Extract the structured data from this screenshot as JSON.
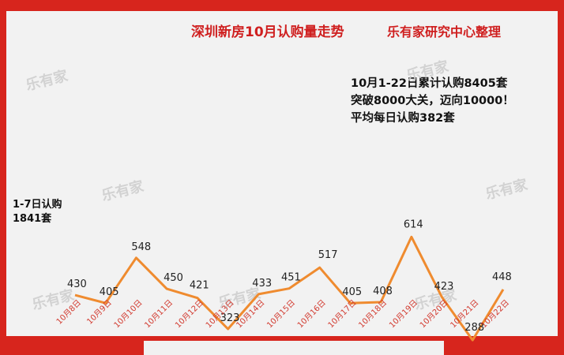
{
  "title": "深圳新房10月认购量走势",
  "credit": "乐有家研究中心整理",
  "annotation_lines": [
    "10月1-22日累计认购8405套",
    "突破8000大关，迈向10000！",
    "平均每日认购382套"
  ],
  "side_note": [
    "1-7日认购",
    "1841套"
  ],
  "watermark": "乐有家",
  "accent_color": "#d7251d",
  "line_color": "#ef8b2f",
  "chart_data": {
    "type": "line",
    "title": "深圳新房10月认购量走势",
    "categories": [
      "10月8日",
      "10月9日",
      "10月10日",
      "10月11日",
      "10月12日",
      "10月13日",
      "10月14日",
      "10月15日",
      "10月16日",
      "10月17日",
      "10月18日",
      "10月19日",
      "10月20日",
      "10月21日",
      "10月22日"
    ],
    "values": [
      430,
      405,
      548,
      450,
      421,
      323,
      433,
      451,
      517,
      405,
      408,
      614,
      423,
      288,
      448
    ],
    "xlabel": "",
    "ylabel": "",
    "ylim": [
      0,
      700
    ],
    "grid": false,
    "legend": "none"
  }
}
